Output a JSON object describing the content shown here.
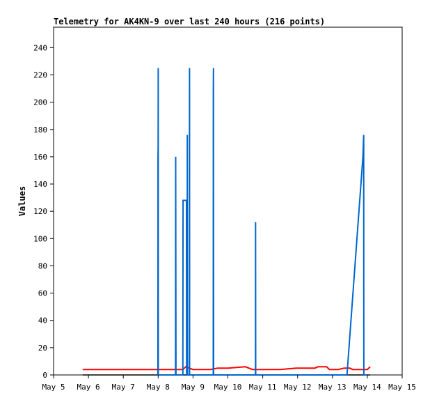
{
  "chart_data": {
    "type": "line",
    "title": "Telemetry for AK4KN-9 over last 240 hours (216 points)",
    "xlabel": "",
    "ylabel": "Values",
    "ylim": [
      0,
      255
    ],
    "xlim": [
      "2024-05-05",
      "2024-05-15"
    ],
    "x_ticks": [
      {
        "date": "2024-05-05",
        "label": "May 5"
      },
      {
        "date": "2024-05-06",
        "label": "May 6"
      },
      {
        "date": "2024-05-07",
        "label": "May 7"
      },
      {
        "date": "2024-05-08",
        "label": "May 8"
      },
      {
        "date": "2024-05-09",
        "label": "May 9"
      },
      {
        "date": "2024-05-10",
        "label": "May 10"
      },
      {
        "date": "2024-05-11",
        "label": "May 11"
      },
      {
        "date": "2024-05-12",
        "label": "May 12"
      },
      {
        "date": "2024-05-13",
        "label": "May 13"
      },
      {
        "date": "2024-05-14",
        "label": "May 14"
      },
      {
        "date": "2024-05-15",
        "label": "May 15"
      }
    ],
    "y_ticks": [
      0,
      20,
      40,
      60,
      80,
      100,
      120,
      140,
      160,
      180,
      200,
      220,
      240
    ],
    "grid": false,
    "legend": "none",
    "series": [
      {
        "color": "#000000",
        "points": [
          [
            "2024-05-05T20:00",
            0
          ],
          [
            "2024-05-14T02:00",
            0
          ]
        ]
      },
      {
        "color": "#ff0000",
        "points": [
          [
            "2024-05-05T20:00",
            4
          ],
          [
            "2024-05-08T00:00",
            4
          ],
          [
            "2024-05-08T17:00",
            4
          ],
          [
            "2024-05-08T19:00",
            6
          ],
          [
            "2024-05-09T00:00",
            4
          ],
          [
            "2024-05-09T12:00",
            4
          ],
          [
            "2024-05-09T17:00",
            5
          ],
          [
            "2024-05-10T00:00",
            5
          ],
          [
            "2024-05-10T12:00",
            6
          ],
          [
            "2024-05-10T17:00",
            4
          ],
          [
            "2024-05-11T12:00",
            4
          ],
          [
            "2024-05-11T23:00",
            5
          ],
          [
            "2024-05-12T12:00",
            5
          ],
          [
            "2024-05-12T14:00",
            6
          ],
          [
            "2024-05-12T20:00",
            6
          ],
          [
            "2024-05-12T22:00",
            4
          ],
          [
            "2024-05-13T04:00",
            4
          ],
          [
            "2024-05-13T08:00",
            5
          ],
          [
            "2024-05-13T12:00",
            5
          ],
          [
            "2024-05-13T14:00",
            4
          ],
          [
            "2024-05-14T00:00",
            4
          ],
          [
            "2024-05-14T02:00",
            6
          ]
        ]
      },
      {
        "color": "#0066cc",
        "points": [
          [
            "2024-05-07T23:50",
            0
          ],
          [
            "2024-05-07T23:55",
            160
          ],
          [
            "2024-05-08T00:00",
            168
          ],
          [
            "2024-05-08T00:03",
            225
          ],
          [
            "2024-05-08T00:06",
            0
          ],
          [
            "2024-05-08T12:00",
            0
          ],
          [
            "2024-05-08T12:05",
            160
          ],
          [
            "2024-05-08T12:10",
            80
          ],
          [
            "2024-05-08T12:15",
            0
          ],
          [
            "2024-05-08T17:00",
            0
          ],
          [
            "2024-05-08T17:05",
            96
          ],
          [
            "2024-05-08T17:10",
            128
          ],
          [
            "2024-05-08T19:30",
            128
          ],
          [
            "2024-05-08T19:35",
            0
          ],
          [
            "2024-05-08T20:00",
            0
          ],
          [
            "2024-05-08T20:05",
            176
          ],
          [
            "2024-05-08T20:10",
            0
          ],
          [
            "2024-05-08T21:30",
            0
          ],
          [
            "2024-05-08T21:35",
            225
          ],
          [
            "2024-05-08T21:40",
            0
          ],
          [
            "2024-05-09T13:55",
            0
          ],
          [
            "2024-05-09T14:00",
            208
          ],
          [
            "2024-05-09T14:05",
            225
          ],
          [
            "2024-05-09T14:10",
            0
          ],
          [
            "2024-05-10T19:00",
            0
          ],
          [
            "2024-05-10T19:05",
            112
          ],
          [
            "2024-05-10T19:10",
            0
          ],
          [
            "2024-05-13T10:00",
            0
          ],
          [
            "2024-05-13T21:00",
            160
          ],
          [
            "2024-05-13T21:30",
            176
          ],
          [
            "2024-05-13T21:35",
            0
          ],
          [
            "2024-05-14T00:00",
            0
          ]
        ]
      }
    ]
  }
}
